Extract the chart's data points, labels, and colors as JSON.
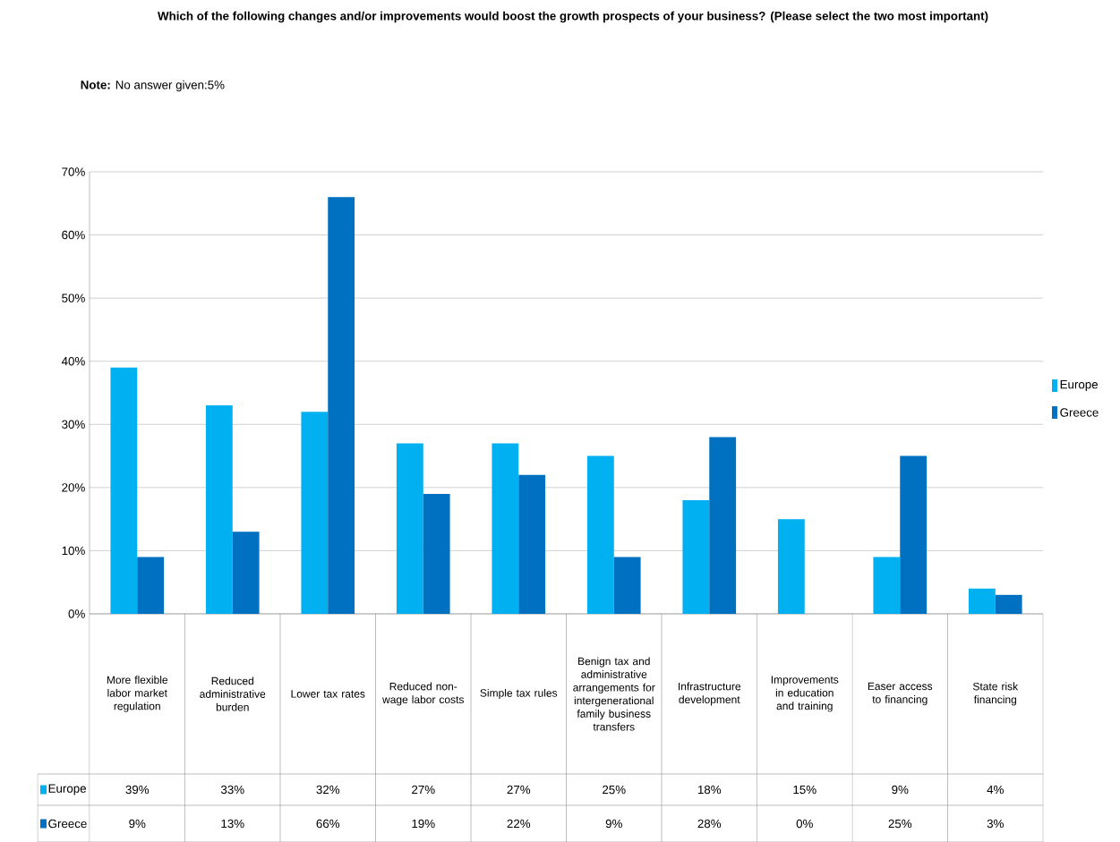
{
  "chart_data": {
    "type": "bar",
    "title": "Which of the following changes and/or improvements would boost the growth prospects of your business? (Please select the two most important)",
    "annotations": [
      "**Note:** No answer given:5%"
    ],
    "categories": [
      "More flexible labor market regulation",
      "Reduced administrative burden",
      "Lower tax rates",
      "Reduced non-wage labor costs",
      "Simple tax rules",
      "Benign tax and administrative arrangements for intergenerational family business transfers",
      "Infrastructure development",
      "Improvements in education and training",
      "Easer access to financing",
      "State risk financing"
    ],
    "series": [
      {
        "name": "Europe",
        "color": "#00b0f0",
        "values": [
          39,
          33,
          32,
          27,
          27,
          25,
          18,
          15,
          9,
          4
        ],
        "value_labels": [
          "39%",
          "33%",
          "32%",
          "27%",
          "27%",
          "25%",
          "18%",
          "15%",
          "9%",
          "4%"
        ]
      },
      {
        "name": "Greece",
        "color": "#0070c0",
        "values": [
          9,
          13,
          66,
          19,
          22,
          9,
          28,
          0,
          25,
          3
        ],
        "value_labels": [
          "9%",
          "13%",
          "66%",
          "19%",
          "22%",
          "9%",
          "28%",
          "0%",
          "25%",
          "3%"
        ]
      }
    ],
    "ylim": [
      0,
      70
    ],
    "yticks": [
      {
        "value": 0,
        "label": "0%"
      },
      {
        "value": 10,
        "label": "10%"
      },
      {
        "value": 20,
        "label": "20%"
      },
      {
        "value": 30,
        "label": "30%"
      },
      {
        "value": 40,
        "label": "40%"
      },
      {
        "value": 50,
        "label": "50%"
      },
      {
        "value": 60,
        "label": "60%"
      },
      {
        "value": 70,
        "label": "70%"
      }
    ],
    "grid": "y",
    "legend": "right"
  }
}
